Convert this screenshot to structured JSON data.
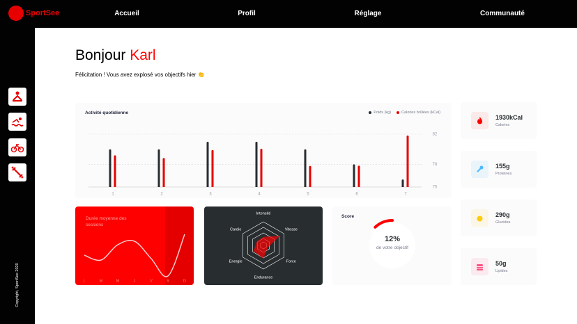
{
  "header": {
    "logo": "SportSee",
    "nav": [
      "Accueil",
      "Profil",
      "Réglage",
      "Communauté"
    ]
  },
  "sidebar": {
    "copyright": "Copyright, SportSee 2020"
  },
  "greeting": {
    "hello": "Bonjour",
    "name": "Karl",
    "message": "Félicitation ! Vous avez explosé vos objectifs hier 👏"
  },
  "activity": {
    "type": "bar",
    "title": "Activité quotidienne",
    "categories": [
      "1",
      "2",
      "3",
      "4",
      "5",
      "6",
      "7"
    ],
    "series": [
      {
        "name": "Poids (kg)",
        "color": "#282d30",
        "values": [
          80,
          80,
          81,
          81,
          80,
          78,
          76
        ]
      },
      {
        "name": "Calories brûlées (kCal)",
        "color": "#e60000",
        "axis": "y2",
        "values": [
          240,
          220,
          280,
          290,
          160,
          162,
          390
        ]
      }
    ],
    "ylim": [
      75,
      82
    ],
    "yticks": [
      75,
      78,
      82
    ],
    "y2lim": [
      0,
      400
    ],
    "grid": true,
    "legend": "top-right"
  },
  "sessions": {
    "type": "line",
    "title": "Durée moyenne des sessions",
    "categories": [
      "L",
      "M",
      "M",
      "J",
      "V",
      "S",
      "D"
    ],
    "values": [
      30,
      23,
      45,
      50,
      25,
      0,
      60
    ],
    "ylim": [
      0,
      80
    ],
    "color": "#ffffff"
  },
  "performance": {
    "type": "radar",
    "categories": [
      "Intensité",
      "Vitesse",
      "Force",
      "Endurance",
      "Energie",
      "Cardio"
    ],
    "values": [
      90,
      200,
      50,
      140,
      120,
      80
    ],
    "rlim": [
      0,
      250
    ],
    "color": "#ff0101"
  },
  "score": {
    "type": "radial",
    "title": "Score",
    "value": 12,
    "value_label": "12%",
    "caption": "de votre objectif",
    "color": "#ff0000"
  },
  "key_data": [
    {
      "value": "1930kCal",
      "label": "Calories"
    },
    {
      "value": "155g",
      "label": "Proteines"
    },
    {
      "value": "290g",
      "label": "Glucides"
    },
    {
      "value": "50g",
      "label": "Lipides"
    }
  ]
}
